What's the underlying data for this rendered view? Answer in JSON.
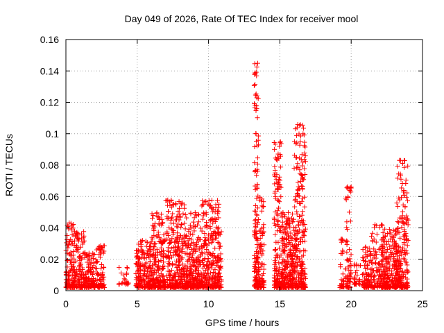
{
  "chart_data": {
    "type": "scatter",
    "title": "Day 049 of 2026, Rate Of TEC Index for receiver mool",
    "xlabel": "GPS time / hours",
    "ylabel": "ROTI / TECUs",
    "xlim": [
      0,
      25
    ],
    "ylim": [
      0,
      0.16
    ],
    "xticks": [
      0,
      5,
      10,
      15,
      20,
      25
    ],
    "xtick_labels": [
      "0",
      "5",
      "10",
      "15",
      "20",
      "25"
    ],
    "yticks": [
      0,
      0.02,
      0.04,
      0.06,
      0.08,
      0.1,
      0.12,
      0.14,
      0.16
    ],
    "ytick_labels": [
      "0",
      "0.02",
      "0.04",
      "0.06",
      "0.08",
      "0.1",
      "0.12",
      "0.14",
      "0.16"
    ],
    "grid": true,
    "marker": "+",
    "color": "#ff0000",
    "series": [
      {
        "name": "ROTI",
        "clusters": [
          {
            "x": [
              0.0,
              0.55
            ],
            "ymin": 0.002,
            "ymax": 0.044,
            "n": 110
          },
          {
            "x": [
              0.55,
              1.4
            ],
            "ymin": 0.002,
            "ymax": 0.038,
            "n": 140
          },
          {
            "x": [
              1.4,
              2.0
            ],
            "ymin": 0.002,
            "ymax": 0.024,
            "n": 90
          },
          {
            "x": [
              2.0,
              2.7
            ],
            "ymin": 0.002,
            "ymax": 0.029,
            "n": 90
          },
          {
            "x": [
              3.7,
              4.4
            ],
            "ymin": 0.004,
            "ymax": 0.015,
            "n": 25
          },
          {
            "x": [
              4.9,
              6.0
            ],
            "ymin": 0.002,
            "ymax": 0.032,
            "n": 180
          },
          {
            "x": [
              6.0,
              7.0
            ],
            "ymin": 0.002,
            "ymax": 0.05,
            "n": 200
          },
          {
            "x": [
              7.0,
              8.3
            ],
            "ymin": 0.002,
            "ymax": 0.058,
            "n": 260
          },
          {
            "x": [
              8.3,
              9.5
            ],
            "ymin": 0.002,
            "ymax": 0.05,
            "n": 260
          },
          {
            "x": [
              9.5,
              10.9
            ],
            "ymin": 0.002,
            "ymax": 0.058,
            "n": 280
          },
          {
            "x": [
              13.2,
              13.5
            ],
            "ymin": 0.002,
            "ymax": 0.146,
            "n": 150
          },
          {
            "x": [
              13.5,
              13.9
            ],
            "ymin": 0.002,
            "ymax": 0.06,
            "n": 80
          },
          {
            "x": [
              14.6,
              15.1
            ],
            "ymin": 0.002,
            "ymax": 0.095,
            "n": 150
          },
          {
            "x": [
              15.1,
              16.0
            ],
            "ymin": 0.002,
            "ymax": 0.05,
            "n": 240
          },
          {
            "x": [
              16.0,
              16.8
            ],
            "ymin": 0.002,
            "ymax": 0.108,
            "n": 250
          },
          {
            "x": [
              19.2,
              19.5
            ],
            "ymin": 0.002,
            "ymax": 0.033,
            "n": 30
          },
          {
            "x": [
              19.6,
              20.0
            ],
            "ymin": 0.002,
            "ymax": 0.069,
            "n": 70
          },
          {
            "x": [
              20.2,
              20.8
            ],
            "ymin": 0.004,
            "ymax": 0.017,
            "n": 30
          },
          {
            "x": [
              20.8,
              21.4
            ],
            "ymin": 0.002,
            "ymax": 0.028,
            "n": 80
          },
          {
            "x": [
              21.4,
              22.2
            ],
            "ymin": 0.002,
            "ymax": 0.043,
            "n": 100
          },
          {
            "x": [
              22.2,
              23.2
            ],
            "ymin": 0.002,
            "ymax": 0.04,
            "n": 220
          },
          {
            "x": [
              23.2,
              24.0
            ],
            "ymin": 0.002,
            "ymax": 0.085,
            "n": 200
          }
        ]
      }
    ]
  }
}
